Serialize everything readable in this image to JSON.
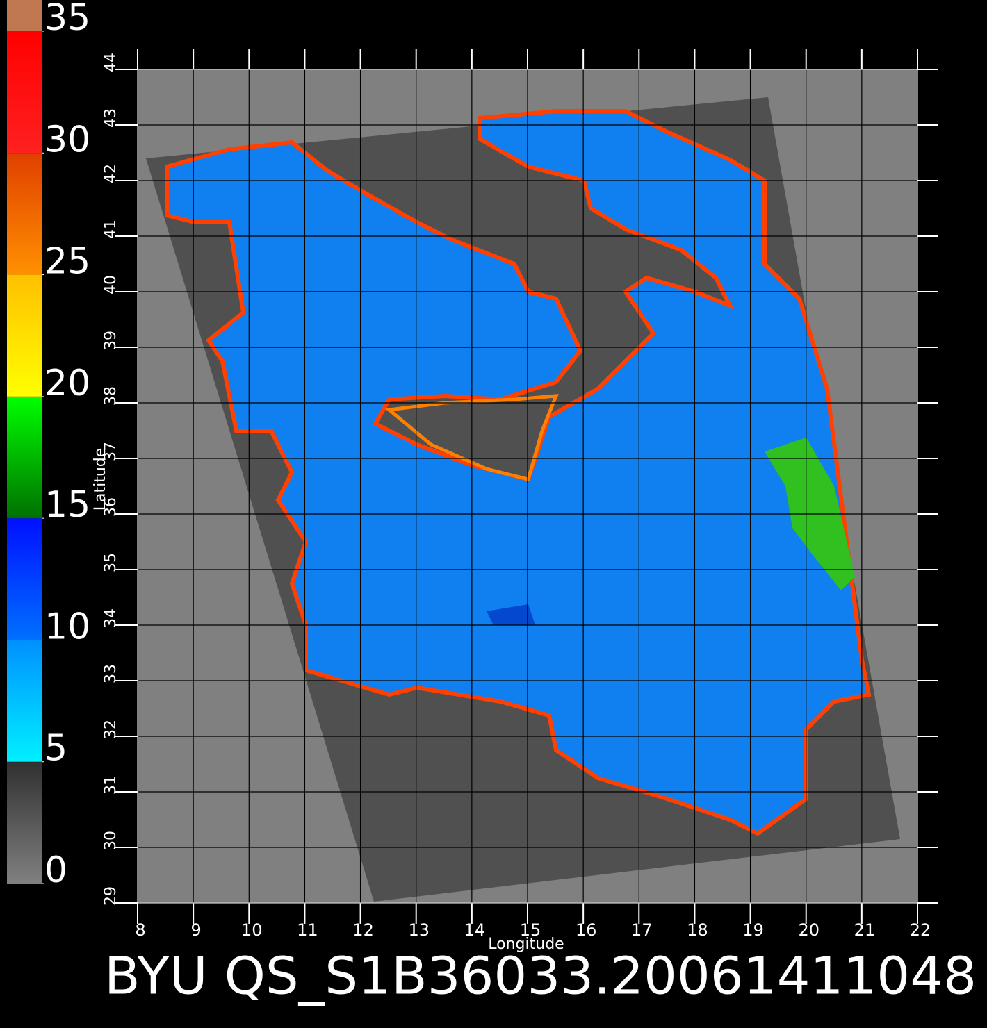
{
  "chart_data": {
    "type": "map",
    "title": "BYU QS_S1B36033.20061411048",
    "xlabel": "Longitude",
    "ylabel": "Latitude",
    "xlim": [
      8,
      22
    ],
    "xticks": [
      8,
      9,
      10,
      11,
      12,
      13,
      14,
      15,
      16,
      17,
      18,
      19,
      20,
      21,
      22
    ],
    "ylim": [
      29,
      44
    ],
    "yticks": [
      29,
      30,
      31,
      32,
      33,
      34,
      35,
      36,
      37,
      38,
      39,
      40,
      41,
      42,
      43,
      44
    ],
    "grid": true,
    "colorbar": {
      "lim": [
        0,
        35
      ],
      "ticks": [
        0,
        5,
        10,
        15,
        20,
        25,
        30,
        35
      ],
      "gradients": [
        [
          "#808080",
          "#303030"
        ],
        [
          "#00f0ff",
          "#0090ff"
        ],
        [
          "#0070ff",
          "#0010ff"
        ],
        [
          "#007000",
          "#00ff00"
        ],
        [
          "#ffff00",
          "#ffc000"
        ],
        [
          "#ff9000",
          "#e04000"
        ],
        [
          "#ff2020",
          "#ff0000"
        ]
      ]
    }
  }
}
